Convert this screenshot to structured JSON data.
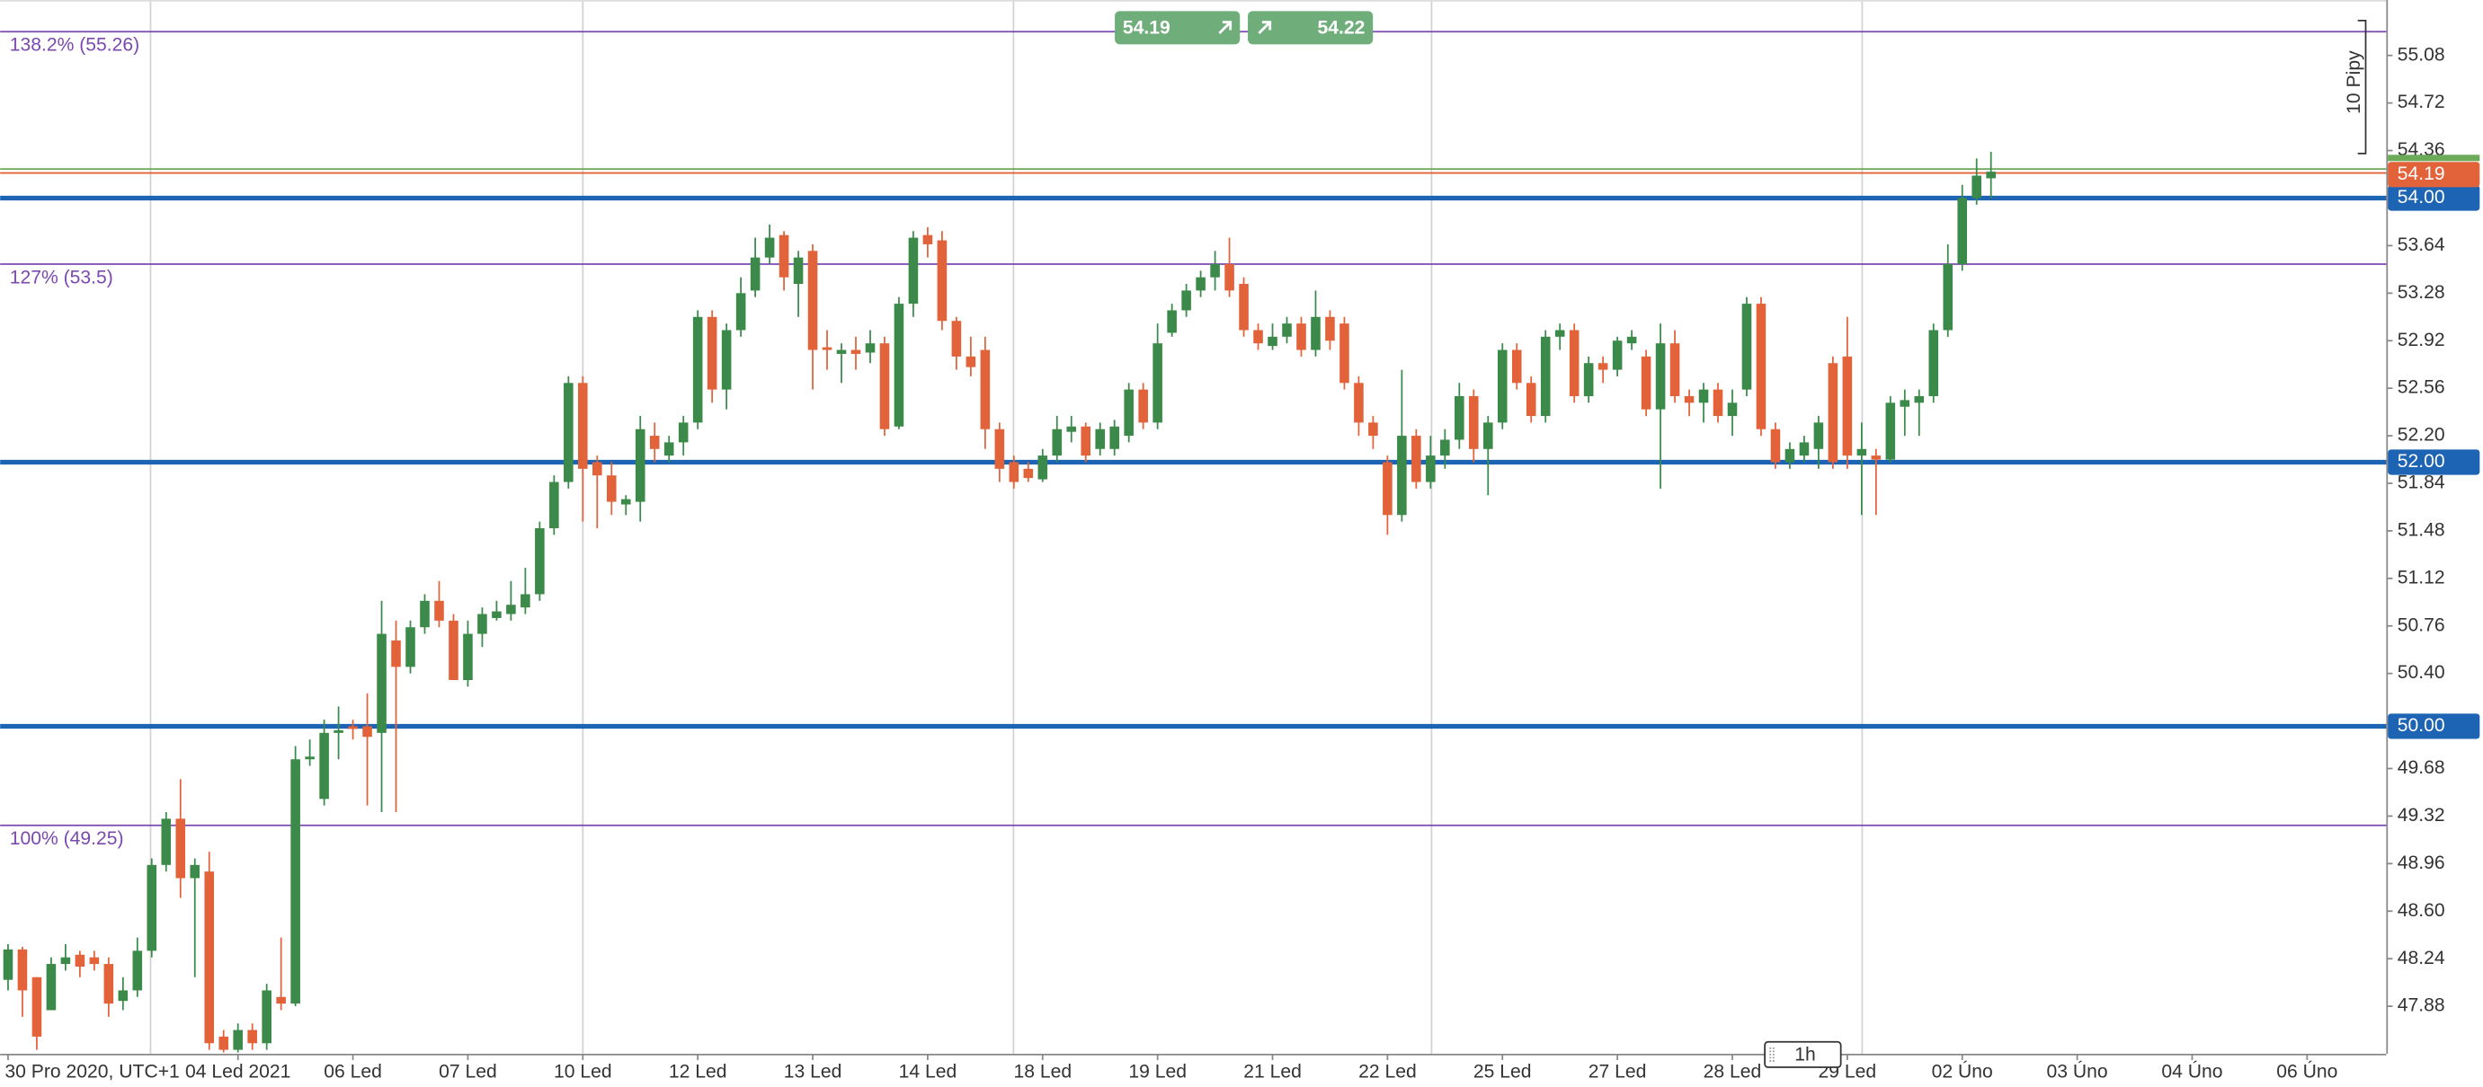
{
  "chart_data": {
    "type": "candlestick",
    "categories": [
      "30 Pro 2020, UTC+1",
      null,
      null,
      null,
      null,
      null,
      null,
      null,
      null,
      null,
      null,
      null,
      null,
      null,
      null,
      null,
      "04 Led 2021",
      null,
      null,
      null,
      null,
      null,
      null,
      null,
      "06 Led",
      null,
      null,
      null,
      null,
      null,
      null,
      null,
      "07 Led",
      null,
      null,
      null,
      null,
      null,
      null,
      null,
      "10 Led",
      null,
      null,
      null,
      null,
      null,
      null,
      null,
      "12 Led",
      null,
      null,
      null,
      null,
      null,
      null,
      null,
      "13 Led",
      null,
      null,
      null,
      null,
      null,
      null,
      null,
      "14 Led",
      null,
      null,
      null,
      null,
      null,
      null,
      null,
      "18 Led",
      null,
      null,
      null,
      null,
      null,
      null,
      null,
      "19 Led",
      null,
      null,
      null,
      null,
      null,
      null,
      null,
      "21 Led",
      null,
      null,
      null,
      null,
      null,
      null,
      null,
      "22 Led",
      null,
      null,
      null,
      null,
      null,
      null,
      null,
      "25 Led",
      null,
      null,
      null,
      null,
      null,
      null,
      null,
      "27 Led",
      null,
      null,
      null,
      null,
      null,
      null,
      null,
      "28 Led",
      null,
      null,
      null,
      null,
      null,
      null,
      null,
      "29 Led",
      null,
      null,
      null,
      null,
      null,
      null,
      null,
      "02 Úno",
      null,
      null,
      null,
      null,
      null,
      null,
      null,
      "03 Úno",
      null,
      null,
      null,
      null,
      null,
      null,
      null,
      "04 Úno",
      null,
      null,
      null,
      null,
      null,
      null,
      null,
      "06 Úno"
    ],
    "open": [
      48.08,
      48.31,
      48.1,
      47.85,
      48.2,
      48.27,
      48.25,
      48.2,
      47.92,
      48.0,
      48.3,
      48.95,
      49.3,
      48.85,
      48.9,
      47.65,
      47.55,
      47.7,
      47.6,
      47.95,
      47.9,
      49.75,
      49.45,
      49.95,
      50.0,
      50.0,
      49.95,
      50.65,
      50.45,
      50.75,
      50.95,
      50.8,
      50.35,
      50.7,
      50.82,
      50.85,
      50.9,
      51.0,
      51.5,
      51.85,
      52.6,
      52.0,
      51.9,
      51.68,
      51.7,
      52.2,
      52.05,
      52.15,
      52.3,
      53.1,
      52.55,
      53.0,
      53.3,
      53.55,
      53.72,
      53.35,
      53.6,
      52.87,
      52.82,
      52.85,
      52.83,
      52.9,
      52.27,
      53.2,
      53.72,
      53.68,
      53.07,
      52.8,
      52.85,
      52.25,
      52.0,
      51.95,
      51.87,
      52.05,
      52.23,
      52.27,
      52.1,
      52.1,
      52.2,
      52.55,
      52.3,
      52.98,
      53.15,
      53.3,
      53.4,
      53.5,
      53.35,
      53.0,
      52.88,
      52.95,
      53.05,
      52.85,
      53.1,
      53.05,
      52.6,
      52.3,
      52.0,
      51.6,
      52.2,
      51.85,
      52.05,
      52.17,
      52.5,
      52.1,
      52.3,
      52.85,
      52.6,
      52.35,
      52.95,
      53.0,
      52.5,
      52.75,
      52.7,
      52.9,
      52.8,
      52.4,
      52.9,
      52.5,
      52.45,
      52.55,
      52.35,
      52.55,
      53.2,
      52.25,
      52.0,
      52.05,
      52.1,
      52.75,
      52.8,
      52.05,
      52.05,
      52.02,
      52.42,
      52.45,
      52.5,
      53.0,
      53.5,
      54.0,
      54.15,
      null,
      null,
      null,
      null,
      null,
      null,
      null,
      null,
      null,
      null,
      null,
      null,
      null,
      null,
      null,
      null,
      null,
      null,
      null,
      null,
      null,
      null
    ],
    "high": [
      48.35,
      48.33,
      48.1,
      48.25,
      48.35,
      48.3,
      48.3,
      48.25,
      48.1,
      48.4,
      49.0,
      49.35,
      49.6,
      49.0,
      49.05,
      47.7,
      47.75,
      47.75,
      48.05,
      48.4,
      49.85,
      49.9,
      50.05,
      50.15,
      50.05,
      50.25,
      50.95,
      50.8,
      50.8,
      51.0,
      51.1,
      50.85,
      50.8,
      50.9,
      50.95,
      51.1,
      51.2,
      51.55,
      51.9,
      52.65,
      52.65,
      52.05,
      52.0,
      51.75,
      52.35,
      52.3,
      52.2,
      52.35,
      53.15,
      53.15,
      53.05,
      53.4,
      53.7,
      53.8,
      53.75,
      53.6,
      53.65,
      53.0,
      52.9,
      52.95,
      53.0,
      52.95,
      53.25,
      53.75,
      53.78,
      53.75,
      53.1,
      52.95,
      52.95,
      52.3,
      52.05,
      52.0,
      52.1,
      52.35,
      52.35,
      52.3,
      52.3,
      52.32,
      52.6,
      52.6,
      53.05,
      53.2,
      53.35,
      53.45,
      53.6,
      53.7,
      53.4,
      53.05,
      53.05,
      53.1,
      53.1,
      53.3,
      53.15,
      53.1,
      52.65,
      52.35,
      52.05,
      52.7,
      52.25,
      52.2,
      52.25,
      52.6,
      52.55,
      52.35,
      52.9,
      52.9,
      52.65,
      53.0,
      53.05,
      53.05,
      52.8,
      52.8,
      52.95,
      53.0,
      52.85,
      53.05,
      53.0,
      52.55,
      52.6,
      52.6,
      52.55,
      53.25,
      53.25,
      52.3,
      52.15,
      52.2,
      52.35,
      52.8,
      53.1,
      52.3,
      52.1,
      52.5,
      52.55,
      52.55,
      53.05,
      53.65,
      54.1,
      54.3,
      54.35,
      null,
      null,
      null,
      null,
      null,
      null,
      null,
      null,
      null,
      null,
      null,
      null,
      null,
      null,
      null,
      null,
      null,
      null,
      null,
      null,
      null,
      null
    ],
    "low": [
      48.0,
      47.8,
      47.55,
      47.85,
      48.15,
      48.1,
      48.15,
      47.8,
      47.85,
      47.95,
      48.25,
      48.9,
      48.7,
      48.1,
      47.55,
      47.53,
      47.53,
      47.55,
      47.55,
      47.85,
      47.88,
      49.7,
      49.4,
      49.75,
      49.9,
      49.4,
      49.35,
      49.35,
      50.4,
      50.7,
      50.75,
      50.35,
      50.3,
      50.6,
      50.8,
      50.8,
      50.85,
      50.95,
      51.45,
      51.8,
      51.55,
      51.5,
      51.6,
      51.6,
      51.55,
      52.0,
      52.0,
      52.05,
      52.25,
      52.45,
      52.4,
      52.95,
      53.25,
      53.5,
      53.3,
      53.1,
      52.55,
      52.7,
      52.6,
      52.7,
      52.75,
      52.2,
      52.25,
      53.1,
      53.55,
      53.0,
      52.7,
      52.65,
      52.1,
      51.85,
      51.8,
      51.85,
      51.85,
      52.0,
      52.15,
      52.0,
      52.05,
      52.05,
      52.15,
      52.25,
      52.25,
      52.95,
      53.1,
      53.25,
      53.3,
      53.25,
      52.95,
      52.85,
      52.85,
      52.9,
      52.8,
      52.8,
      52.85,
      52.55,
      52.2,
      52.1,
      51.45,
      51.55,
      51.8,
      51.8,
      51.95,
      52.1,
      52.0,
      51.75,
      52.25,
      52.55,
      52.3,
      52.3,
      52.85,
      52.45,
      52.45,
      52.6,
      52.65,
      52.85,
      52.35,
      51.8,
      52.45,
      52.35,
      52.3,
      52.3,
      52.2,
      52.5,
      52.2,
      51.95,
      51.95,
      52.0,
      51.95,
      51.95,
      51.95,
      51.6,
      51.6,
      52.0,
      52.2,
      52.2,
      52.45,
      52.95,
      53.45,
      53.95,
      54.0,
      null,
      null,
      null,
      null,
      null,
      null,
      null,
      null,
      null,
      null,
      null,
      null,
      null,
      null,
      null,
      null,
      null,
      null,
      null,
      null,
      null,
      null
    ],
    "close": [
      48.31,
      48.0,
      47.65,
      48.2,
      48.25,
      48.18,
      48.2,
      47.9,
      48.0,
      48.3,
      48.95,
      49.3,
      48.85,
      48.95,
      47.6,
      47.55,
      47.7,
      47.6,
      48.0,
      47.9,
      49.75,
      49.77,
      49.95,
      49.97,
      49.98,
      49.92,
      50.7,
      50.45,
      50.75,
      50.95,
      50.8,
      50.35,
      50.7,
      50.85,
      50.87,
      50.92,
      51.0,
      51.5,
      51.85,
      52.6,
      51.95,
      51.9,
      51.7,
      51.72,
      52.25,
      52.1,
      52.15,
      52.3,
      53.1,
      52.55,
      53.0,
      53.28,
      53.55,
      53.7,
      53.4,
      53.55,
      52.85,
      52.85,
      52.85,
      52.82,
      52.9,
      52.25,
      53.2,
      53.7,
      53.65,
      53.07,
      52.8,
      52.72,
      52.25,
      51.95,
      51.85,
      51.88,
      52.05,
      52.25,
      52.27,
      52.05,
      52.25,
      52.27,
      52.55,
      52.3,
      52.9,
      53.15,
      53.3,
      53.4,
      53.5,
      53.3,
      53.0,
      52.9,
      52.95,
      53.05,
      52.85,
      53.1,
      52.92,
      52.6,
      52.3,
      52.2,
      51.6,
      52.2,
      51.85,
      52.05,
      52.17,
      52.5,
      52.1,
      52.3,
      52.85,
      52.6,
      52.35,
      52.95,
      53.0,
      52.5,
      52.75,
      52.7,
      52.92,
      52.95,
      52.4,
      52.9,
      52.5,
      52.45,
      52.55,
      52.35,
      52.45,
      53.2,
      52.25,
      52.0,
      52.1,
      52.15,
      52.3,
      52.0,
      52.05,
      52.1,
      52.02,
      52.45,
      52.47,
      52.5,
      53.0,
      53.5,
      54.0,
      54.17,
      54.2,
      null,
      null,
      null,
      null,
      null,
      null,
      null,
      null,
      null,
      null,
      null,
      null,
      null,
      null,
      null,
      null,
      null,
      null,
      null,
      null,
      null,
      null
    ],
    "colors": {
      "up": "#3b8a49",
      "down": "#e2623a"
    },
    "ylim": [
      47.52,
      55.5
    ],
    "yticks": [
      55.08,
      54.72,
      54.36,
      53.64,
      53.28,
      52.92,
      52.56,
      {
        "value": 52.2,
        "label": "52.20"
      },
      51.84,
      51.48,
      51.12,
      50.76,
      {
        "value": 50.4,
        "label": "50.40"
      },
      49.68,
      49.32,
      48.96,
      {
        "value": 48.6,
        "label": "48.60"
      },
      48.24,
      47.88
    ],
    "levels": [
      {
        "value": 54,
        "label": "54.00",
        "color": "#1e64b4"
      },
      {
        "value": 52,
        "label": "52.00",
        "color": "#1e64b4"
      },
      {
        "value": 50,
        "label": "50.00",
        "color": "#1e64b4"
      }
    ],
    "fib_levels": [
      {
        "value": 55.26,
        "label": "138.2% (55.26)",
        "color": "#7b48b0"
      },
      {
        "value": 53.5,
        "label": "127% (53.5)",
        "color": "#7b48b0"
      },
      {
        "value": 49.25,
        "label": "100% (49.25)",
        "color": "#7b48b0"
      }
    ],
    "bid": {
      "value": 54.19,
      "label": "54.19",
      "color": "#e2623a"
    },
    "ask": {
      "value": 54.22,
      "label": "54.22",
      "color": "#6aaa58"
    },
    "pip_label": "10 Pipy",
    "timeframe": "1h"
  }
}
